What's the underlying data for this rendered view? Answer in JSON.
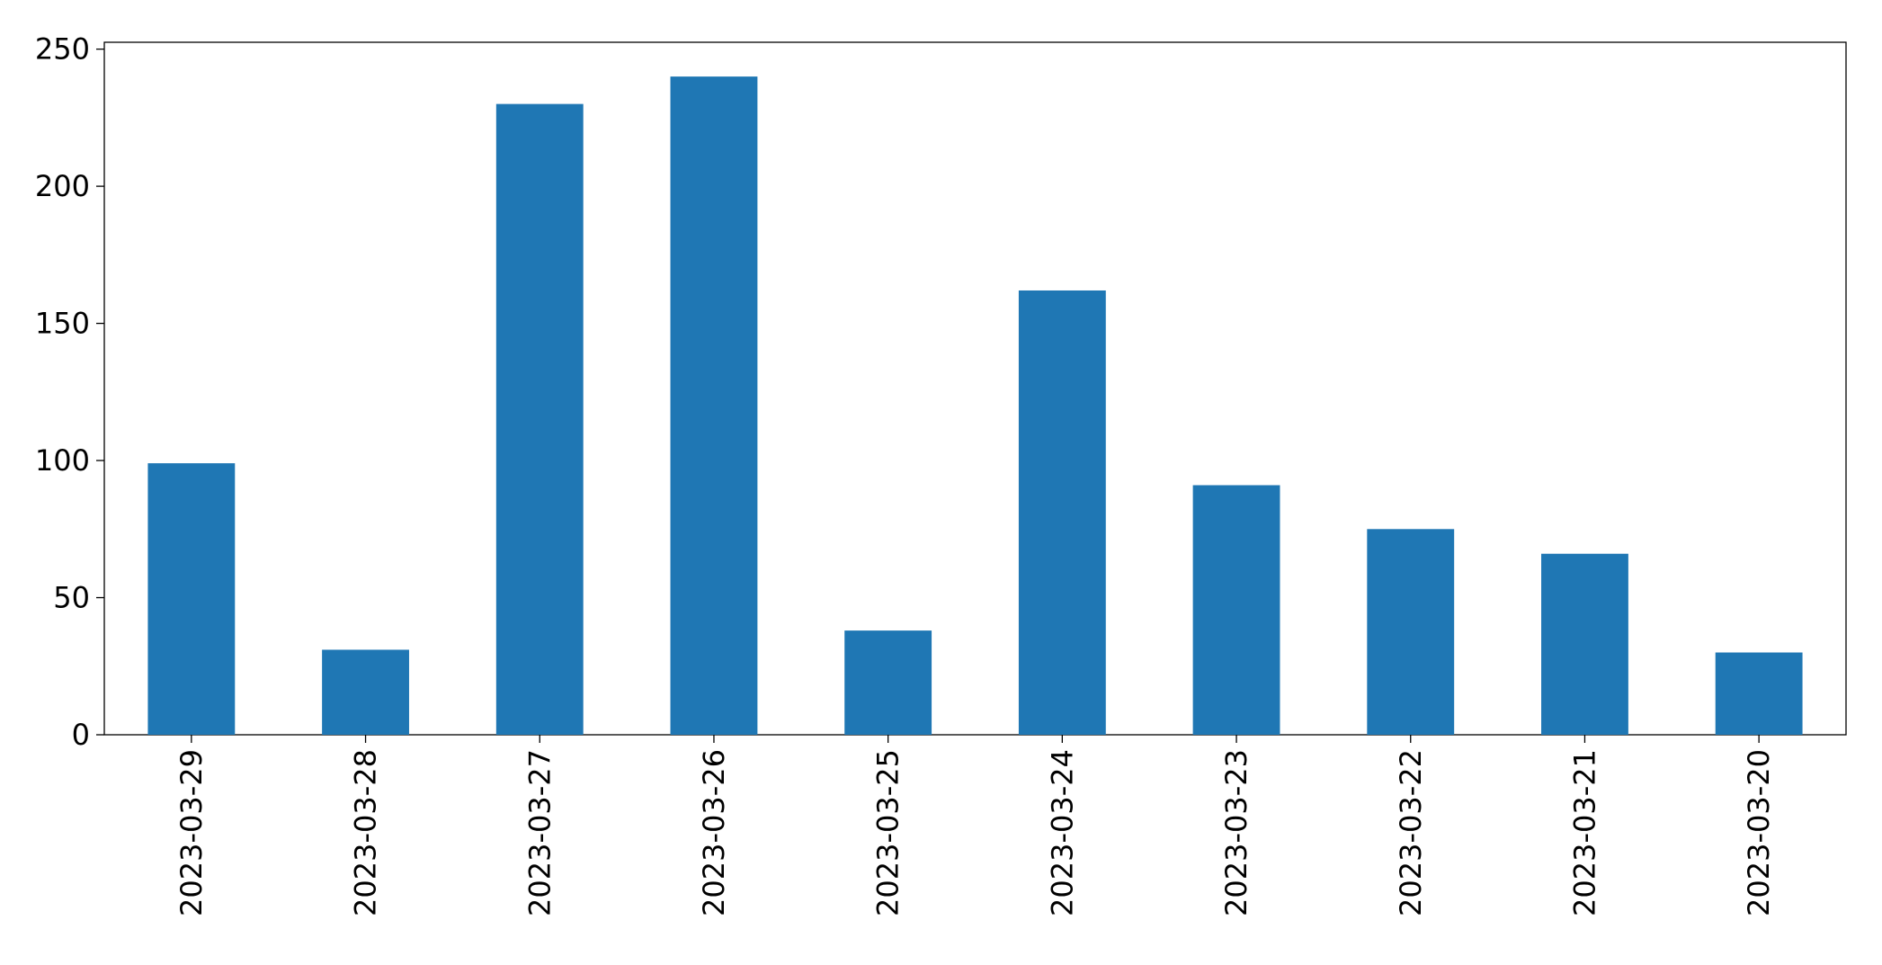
{
  "chart_data": {
    "type": "bar",
    "categories": [
      "2023-03-29",
      "2023-03-28",
      "2023-03-27",
      "2023-03-26",
      "2023-03-25",
      "2023-03-24",
      "2023-03-23",
      "2023-03-22",
      "2023-03-21",
      "2023-03-20"
    ],
    "values": [
      99,
      31,
      230,
      240,
      38,
      162,
      91,
      75,
      66,
      30
    ],
    "color": "#1f77b4",
    "ylim": [
      0,
      252.5
    ],
    "yticks": [
      0,
      50,
      100,
      150,
      200,
      250
    ],
    "grid": false
  }
}
